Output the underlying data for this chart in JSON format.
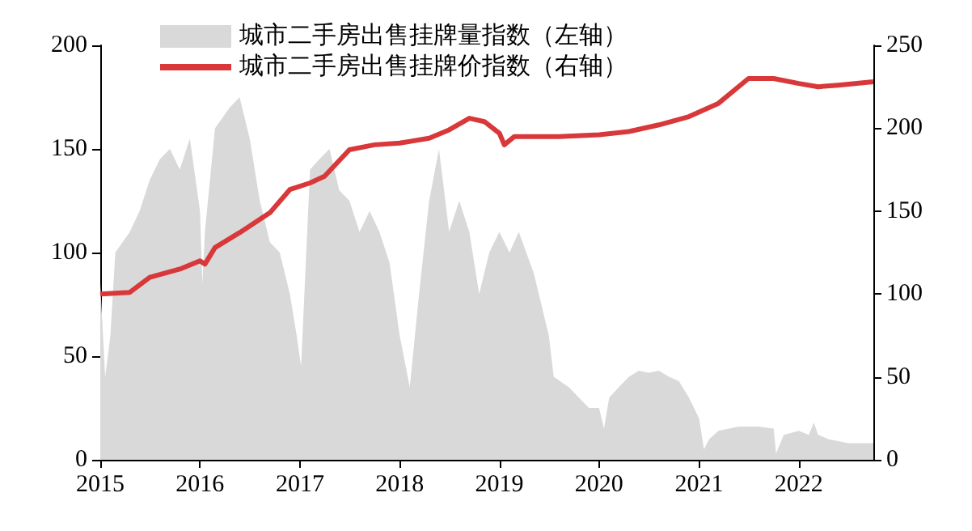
{
  "chart_data": {
    "type": "area",
    "legend": "top left",
    "grid": false,
    "xlim": [
      "2015",
      "2022-10"
    ],
    "xticks": [
      "2015",
      "2016",
      "2017",
      "2018",
      "2019",
      "2020",
      "2021",
      "2022"
    ],
    "ylim": [
      0,
      200
    ],
    "yticks": [
      0,
      50,
      100,
      150,
      200
    ],
    "y2lim": [
      0,
      250
    ],
    "y2ticks": [
      0,
      50,
      100,
      150,
      200,
      250
    ],
    "series": [
      {
        "name": "城市二手房出售挂牌量指数（左轴）",
        "color": "#d9d9d9",
        "x": [
          "2015-01-01",
          "2015-01-19",
          "2015-02-07",
          "2015-02-25",
          "2015-04-19",
          "2015-05-25",
          "2015-07-01",
          "2015-08-07",
          "2015-09-13",
          "2015-10-19",
          "2015-11-25",
          "2016-01-01",
          "2016-01-10",
          "2016-01-19",
          "2016-02-25",
          "2016-04-19",
          "2016-05-25",
          "2016-07-01",
          "2016-08-07",
          "2016-09-13",
          "2016-10-19",
          "2016-11-25",
          "2016-12-20",
          "2017-01-05",
          "2017-02-07",
          "2017-03-13",
          "2017-04-19",
          "2017-05-25",
          "2017-07-01",
          "2017-08-07",
          "2017-09-13",
          "2017-10-19",
          "2017-11-25",
          "2018-01-01",
          "2018-02-07",
          "2018-03-13",
          "2018-04-19",
          "2018-05-25",
          "2018-07-01",
          "2018-08-07",
          "2018-09-13",
          "2018-10-19",
          "2018-11-25",
          "2019-01-01",
          "2019-02-07",
          "2019-03-13",
          "2019-05-07",
          "2019-07-01",
          "2019-07-19",
          "2019-09-13",
          "2019-10-19",
          "2019-11-25",
          "2020-01-01",
          "2020-01-19",
          "2020-02-07",
          "2020-03-13",
          "2020-04-19",
          "2020-05-25",
          "2020-07-01",
          "2020-08-07",
          "2020-09-13",
          "2020-10-19",
          "2020-11-25",
          "2021-01-01",
          "2021-01-19",
          "2021-02-07",
          "2021-03-13",
          "2021-05-25",
          "2021-08-07",
          "2021-10-01",
          "2021-10-10",
          "2021-11-07",
          "2022-01-01",
          "2022-02-07",
          "2022-02-25",
          "2022-03-13",
          "2022-04-19",
          "2022-07-01",
          "2022-10-01"
        ],
        "values": [
          85,
          40,
          60,
          100,
          110,
          120,
          135,
          145,
          150,
          140,
          155,
          120,
          85,
          110,
          160,
          170,
          175,
          155,
          125,
          105,
          100,
          80,
          60,
          45,
          140,
          145,
          150,
          130,
          125,
          110,
          120,
          110,
          95,
          60,
          35,
          80,
          125,
          150,
          110,
          125,
          110,
          80,
          100,
          110,
          100,
          110,
          90,
          60,
          40,
          35,
          30,
          25,
          25,
          15,
          30,
          35,
          40,
          43,
          42,
          43,
          40,
          38,
          30,
          20,
          5,
          10,
          14,
          16,
          16,
          15,
          3,
          12,
          14,
          12,
          18,
          12,
          10,
          8,
          8
        ]
      },
      {
        "name": "城市二手房出售挂牌价指数（右轴）",
        "type": "line",
        "axis": "y2",
        "color": "#d9383a",
        "x": [
          "2015-01-01",
          "2015-04-19",
          "2015-07-01",
          "2015-10-19",
          "2016-01-01",
          "2016-01-19",
          "2016-02-25",
          "2016-05-25",
          "2016-09-13",
          "2016-11-25",
          "2017-02-07",
          "2017-04-01",
          "2017-07-01",
          "2017-10-01",
          "2018-01-01",
          "2018-04-19",
          "2018-07-01",
          "2018-09-13",
          "2018-11-07",
          "2019-01-01",
          "2019-01-19",
          "2019-02-25",
          "2019-04-19",
          "2019-08-07",
          "2020-01-01",
          "2020-04-19",
          "2020-08-07",
          "2020-11-25",
          "2021-03-13",
          "2021-05-25",
          "2021-07-01",
          "2021-10-01",
          "2022-01-01",
          "2022-03-13",
          "2022-05-25",
          "2022-10-01"
        ],
        "values": [
          100,
          101,
          110,
          115,
          120,
          118,
          128,
          137,
          149,
          163,
          167,
          171,
          187,
          190,
          191,
          194,
          199,
          206,
          204,
          197,
          190,
          195,
          195,
          195,
          196,
          198,
          202,
          207,
          215,
          225,
          230,
          230,
          227,
          225,
          226,
          228
        ]
      }
    ]
  }
}
